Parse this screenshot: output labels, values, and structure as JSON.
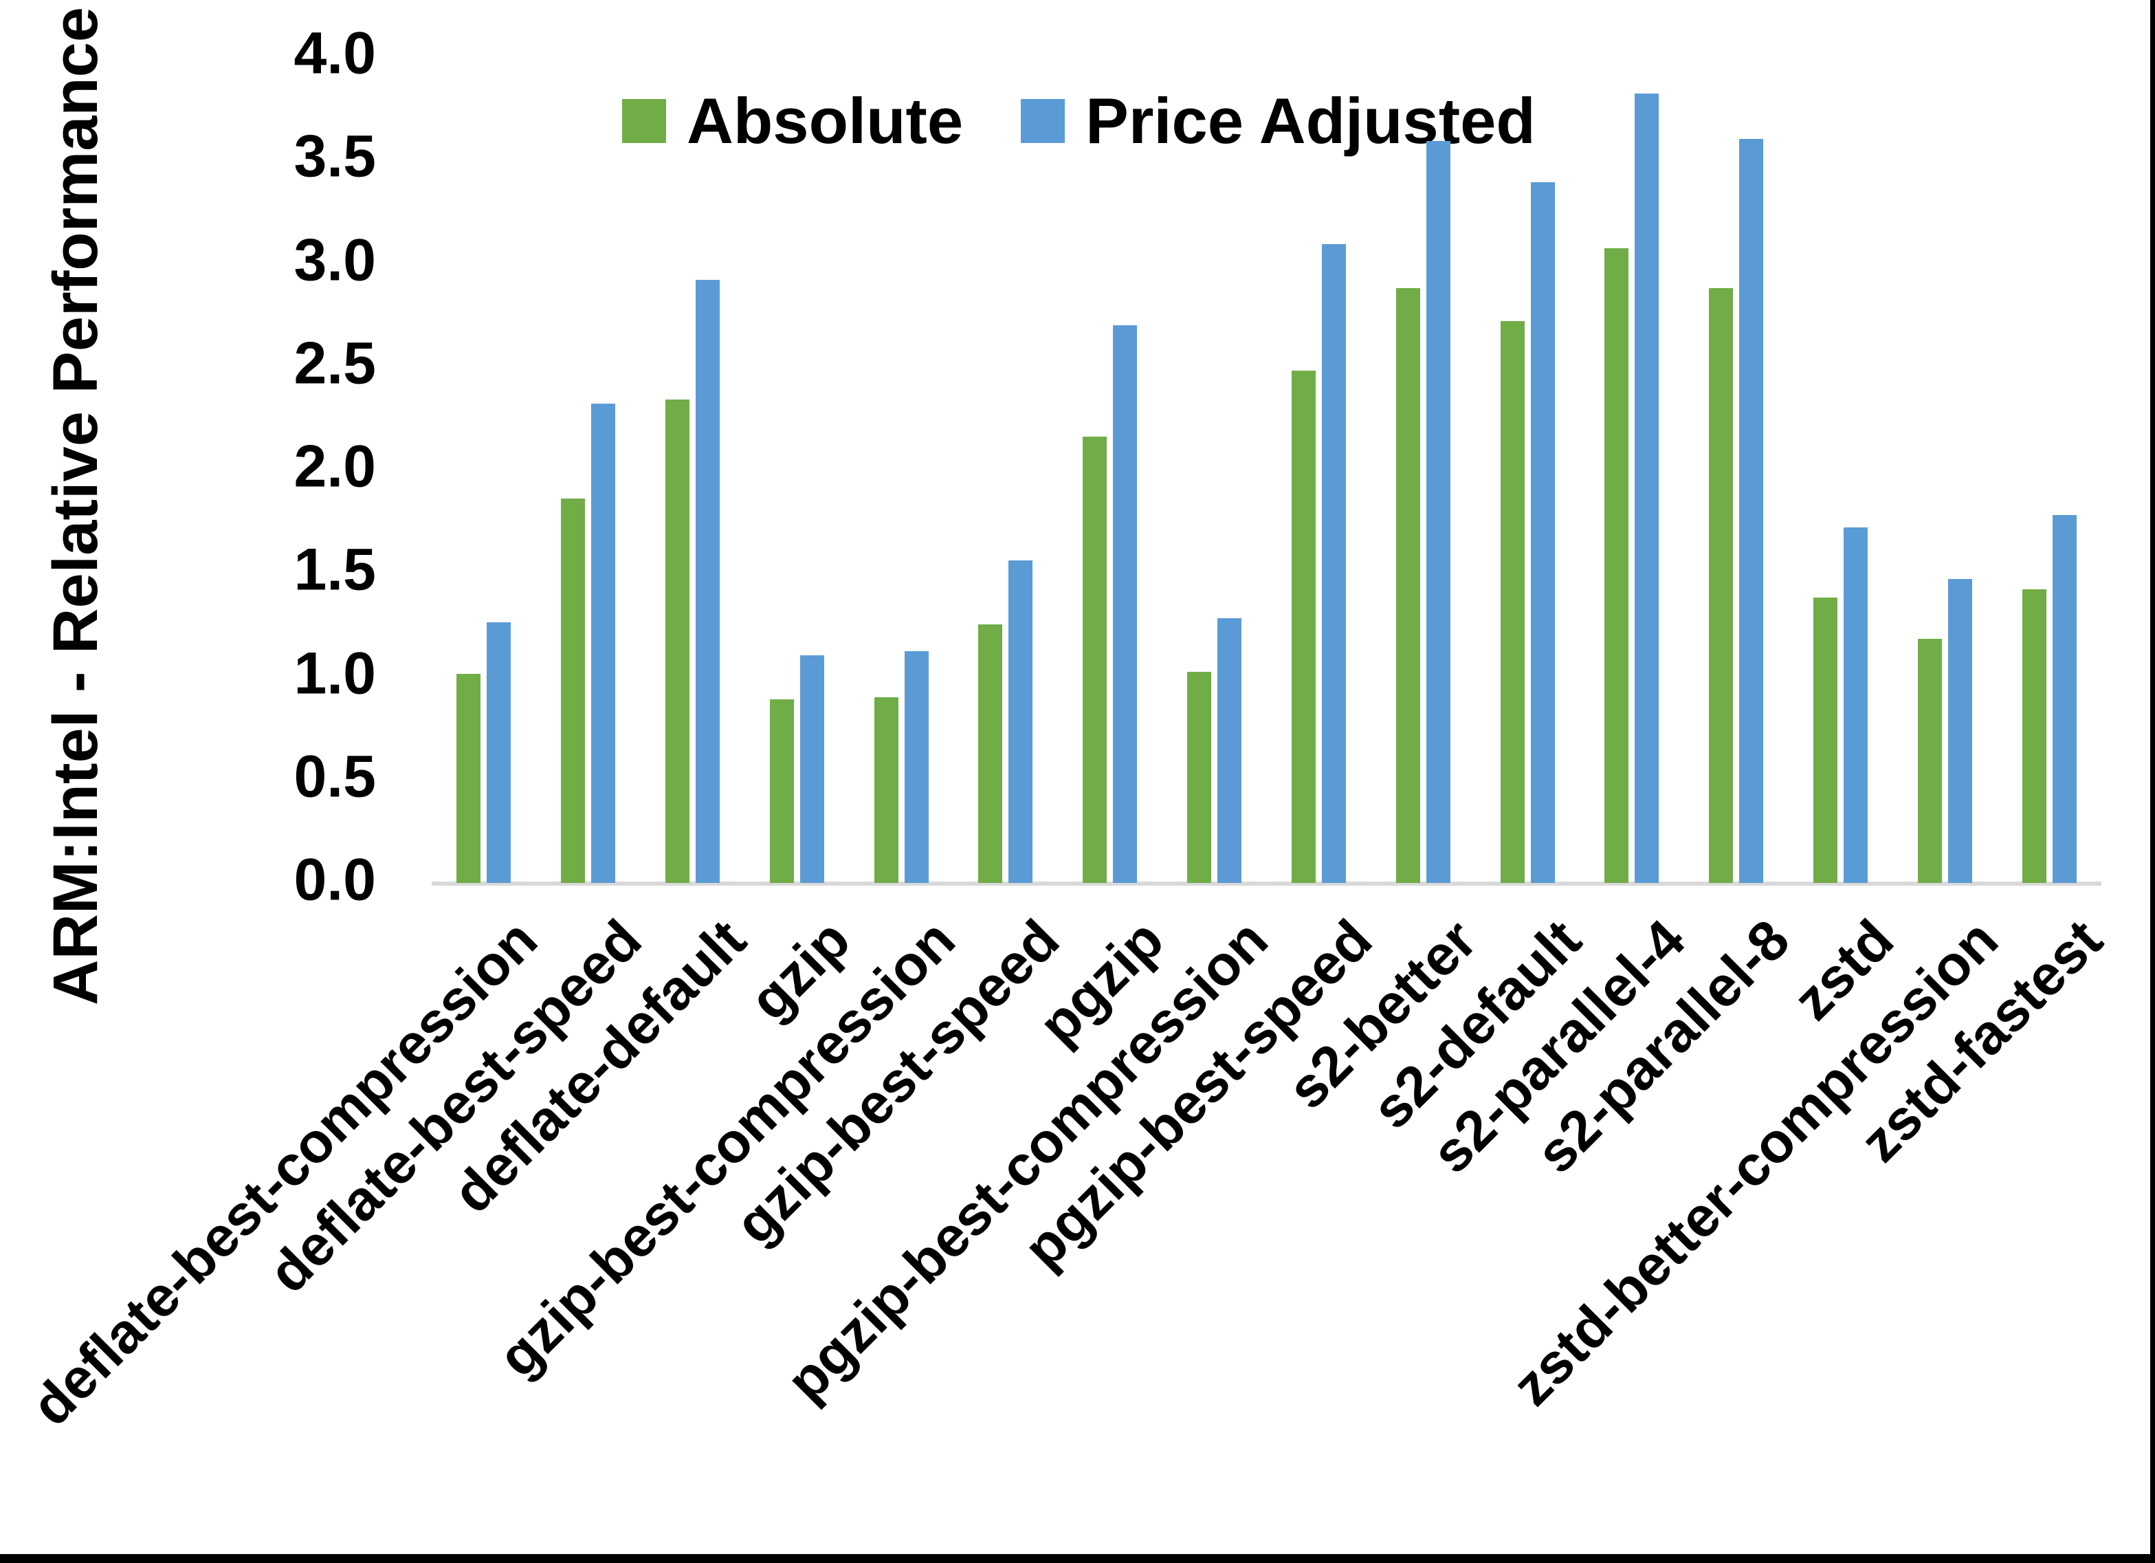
{
  "figure": {
    "background": "#ffffff",
    "axis_line_color": "#d9d9d9",
    "border_color": "#000000",
    "yticks": [
      "4.0",
      "3.5",
      "3.0",
      "2.5",
      "2.0",
      "1.5",
      "1.0",
      "0.5",
      "0.0"
    ]
  },
  "chart_data": {
    "type": "bar",
    "title": "",
    "xlabel": "",
    "ylabel": "ARM:Intel - Relative Performance",
    "ylim": [
      0,
      4
    ],
    "ytick_step": 0.5,
    "grid": false,
    "legend_position": "top",
    "categories": [
      "deflate-best-compression",
      "deflate-best-speed",
      "deflate-default",
      "gzip",
      "gzip-best-compression",
      "gzip-best-speed",
      "pgzip",
      "pgzip-best-compression",
      "pgzip-best-speed",
      "s2-better",
      "s2-default",
      "s2-parallel-4",
      "s2-parallel-8",
      "zstd",
      "zstd-better-compression",
      "zstd-fastest"
    ],
    "series": [
      {
        "name": "Absolute",
        "color": "#70AD47",
        "values": [
          1.01,
          1.86,
          2.34,
          0.89,
          0.9,
          1.25,
          2.16,
          1.02,
          2.48,
          2.88,
          2.72,
          3.07,
          2.88,
          1.38,
          1.18,
          1.42
        ]
      },
      {
        "name": "Price Adjusted",
        "color": "#5B9BD5",
        "values": [
          1.26,
          2.32,
          2.92,
          1.1,
          1.12,
          1.56,
          2.7,
          1.28,
          3.09,
          3.59,
          3.39,
          3.82,
          3.6,
          1.72,
          1.47,
          1.78
        ]
      }
    ]
  }
}
